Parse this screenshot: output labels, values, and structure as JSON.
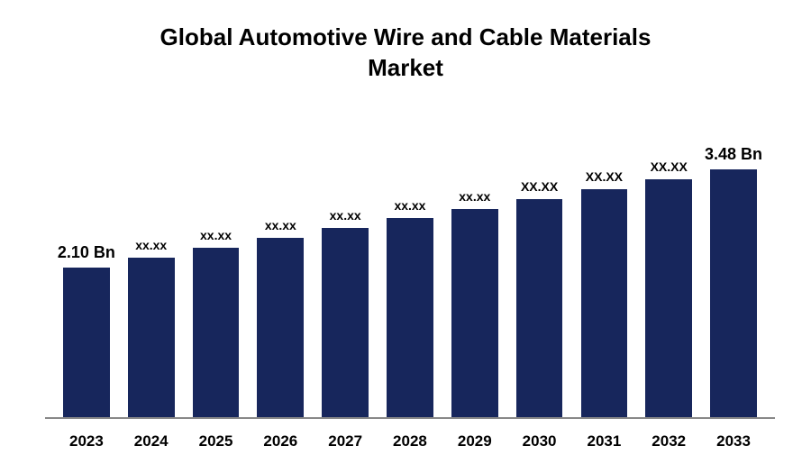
{
  "chart": {
    "type": "bar",
    "title_line1": "Global Automotive Wire and Cable Materials",
    "title_line2": "Market",
    "title_fontsize": 26,
    "title_color": "#000000",
    "background_color": "#ffffff",
    "axis_color": "#888888",
    "bar_color": "#17265c",
    "max_value": 3.6,
    "x_label_fontsize": 17,
    "bar_label_fontsize_normal": 14,
    "bar_label_fontsize_large": 18,
    "bars": [
      {
        "category": "2023",
        "value": 2.1,
        "label": "2.10 Bn",
        "label_large": true
      },
      {
        "category": "2024",
        "value": 2.24,
        "label": "xx.xx",
        "label_large": false
      },
      {
        "category": "2025",
        "value": 2.38,
        "label": "xx.xx",
        "label_large": false
      },
      {
        "category": "2026",
        "value": 2.52,
        "label": "xx.xx",
        "label_large": false
      },
      {
        "category": "2027",
        "value": 2.66,
        "label": "xx.xx",
        "label_large": false
      },
      {
        "category": "2028",
        "value": 2.8,
        "label": "xx.xx",
        "label_large": false
      },
      {
        "category": "2029",
        "value": 2.93,
        "label": "xx.xx",
        "label_large": false
      },
      {
        "category": "2030",
        "value": 3.07,
        "label": "XX.XX",
        "label_large": false
      },
      {
        "category": "2031",
        "value": 3.21,
        "label": "XX.XX",
        "label_large": false
      },
      {
        "category": "2032",
        "value": 3.35,
        "label": "XX.XX",
        "label_large": false
      },
      {
        "category": "2033",
        "value": 3.48,
        "label": "3.48 Bn",
        "label_large": true
      }
    ]
  }
}
